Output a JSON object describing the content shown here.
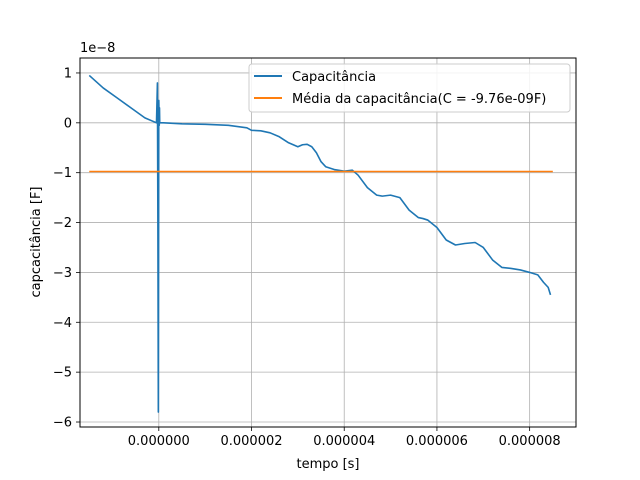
{
  "chart_data": {
    "type": "line",
    "xlabel": "tempo [s]",
    "ylabel": "capcacitância [F]",
    "offset_label": "1e−8",
    "xlim": [
      -1.7e-06,
      9e-06
    ],
    "ylim": [
      -6.1,
      1.3
    ],
    "y_scale_factor": 1e-08,
    "grid": true,
    "legend_position": "top-right",
    "xticks": [
      -2e-06,
      0.0,
      2e-06,
      4e-06,
      6e-06,
      8e-06
    ],
    "xtick_labels": [
      "−0.000002",
      "0.000000",
      "0.000002",
      "0.000004",
      "0.000006",
      "0.000008"
    ],
    "yticks": [
      1,
      0,
      -1,
      -2,
      -3,
      -4,
      -5,
      -6
    ],
    "ytick_labels": [
      "1",
      "0",
      "−1",
      "−2",
      "−3",
      "−4",
      "−5",
      "−6"
    ],
    "series": [
      {
        "name": "Capacitância",
        "color": "#1f77b4",
        "x": [
          -1.5e-06,
          -1.2e-06,
          -9e-07,
          -6e-07,
          -3e-07,
          -5e-08,
          -3e-08,
          -2e-08,
          -1e-08,
          0.0,
          1e-08,
          1.5e-08,
          2e-08,
          1e-07,
          5e-07,
          1e-06,
          1.5e-06,
          1.9e-06,
          2e-06,
          2.2e-06,
          2.4e-06,
          2.6e-06,
          2.8e-06,
          3e-06,
          3.1e-06,
          3.2e-06,
          3.3e-06,
          3.4e-06,
          3.5e-06,
          3.6e-06,
          3.8e-06,
          4e-06,
          4.176e-06,
          4.3e-06,
          4.5e-06,
          4.7e-06,
          4.824e-06,
          5e-06,
          5.2e-06,
          5.4e-06,
          5.6e-06,
          5.7e-06,
          5.8e-06,
          6e-06,
          6.2e-06,
          6.4e-06,
          6.6e-06,
          6.824e-06,
          7e-06,
          7.2e-06,
          7.4e-06,
          7.6e-06,
          7.8e-06,
          8e-06,
          8.176e-06,
          8.3e-06,
          8.4e-06,
          8.45e-06
        ],
        "y": [
          0.95,
          0.7,
          0.5,
          0.3,
          0.1,
          0.0,
          0.8,
          -2.0,
          -5.8,
          0.45,
          -0.05,
          0.3,
          0.0,
          0.0,
          -0.02,
          -0.03,
          -0.05,
          -0.1,
          -0.15,
          -0.16,
          -0.2,
          -0.28,
          -0.4,
          -0.48,
          -0.44,
          -0.43,
          -0.48,
          -0.6,
          -0.78,
          -0.88,
          -0.94,
          -0.97,
          -0.95,
          -1.05,
          -1.3,
          -1.45,
          -1.47,
          -1.45,
          -1.5,
          -1.75,
          -1.9,
          -1.92,
          -1.95,
          -2.1,
          -2.35,
          -2.45,
          -2.42,
          -2.4,
          -2.5,
          -2.75,
          -2.9,
          -2.92,
          -2.95,
          -3.0,
          -3.05,
          -3.2,
          -3.3,
          -3.45
        ]
      },
      {
        "name": "Média da capacitância(C = -9.76e-09F)",
        "color": "#ff7f0e",
        "x": [
          -1.5e-06,
          8.5e-06
        ],
        "y": [
          -0.976,
          -0.976
        ]
      }
    ]
  }
}
